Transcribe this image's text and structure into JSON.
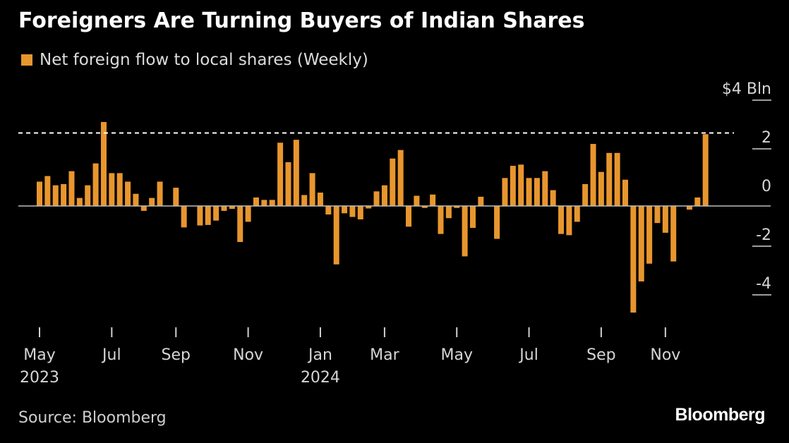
{
  "title": "Foreigners Are Turning Buyers of Indian Shares",
  "legend": {
    "label": "Net foreign flow to local shares (Weekly)",
    "color": "#e8962e"
  },
  "source": "Source: Bloomberg",
  "brand": "Bloomberg",
  "chart_data": {
    "type": "bar",
    "unit": "$ Bln",
    "series": [
      {
        "name": "Net foreign flow to local shares (Weekly)",
        "color": "#e8962e",
        "values": [
          1.0,
          1.23,
          0.85,
          0.9,
          1.43,
          0.33,
          0.85,
          1.75,
          3.45,
          1.35,
          1.35,
          1.0,
          0.5,
          -0.2,
          0.33,
          1.0,
          0,
          0.75,
          -0.88,
          0,
          -0.8,
          -0.78,
          -0.6,
          -0.2,
          -0.12,
          -1.48,
          -0.65,
          0.35,
          0.25,
          0.25,
          2.6,
          1.8,
          2.72,
          0.45,
          1.35,
          0.55,
          -0.35,
          -2.4,
          -0.3,
          -0.45,
          -0.55,
          -0.1,
          0.6,
          0.85,
          1.95,
          2.3,
          -0.85,
          0.42,
          -0.08,
          0.47,
          -1.15,
          -0.5,
          -0.08,
          -2.07,
          -0.9,
          0.38,
          0,
          -1.35,
          1.15,
          1.65,
          1.7,
          1.15,
          1.15,
          1.43,
          0.65,
          -1.15,
          -1.2,
          -0.65,
          0.9,
          2.55,
          1.4,
          2.18,
          2.18,
          1.08,
          -4.38,
          -3.1,
          -2.37,
          -0.7,
          -1.1,
          -2.28,
          0,
          -0.15,
          0.35,
          2.95
        ]
      }
    ],
    "x_ticks": [
      {
        "label": "May",
        "sub": "2023",
        "index": 0
      },
      {
        "label": "Jul",
        "sub": "",
        "index": 9
      },
      {
        "label": "Sep",
        "sub": "",
        "index": 17
      },
      {
        "label": "Nov",
        "sub": "",
        "index": 26
      },
      {
        "label": "Jan",
        "sub": "2024",
        "index": 35
      },
      {
        "label": "Mar",
        "sub": "",
        "index": 43
      },
      {
        "label": "May",
        "sub": "",
        "index": 52
      },
      {
        "label": "Jul",
        "sub": "",
        "index": 61
      },
      {
        "label": "Sep",
        "sub": "",
        "index": 70
      },
      {
        "label": "Nov",
        "sub": "",
        "index": 78
      }
    ],
    "y_ticks": [
      {
        "value": 4,
        "label": "$4 Bln"
      },
      {
        "value": 2,
        "label": "2"
      },
      {
        "value": 0,
        "label": "0"
      },
      {
        "value": -2,
        "label": "-2"
      },
      {
        "value": -4,
        "label": "-4"
      }
    ],
    "ylim": [
      -5,
      4
    ],
    "reference_line": {
      "value": 3.0,
      "style": "dashed"
    },
    "grid": false
  }
}
